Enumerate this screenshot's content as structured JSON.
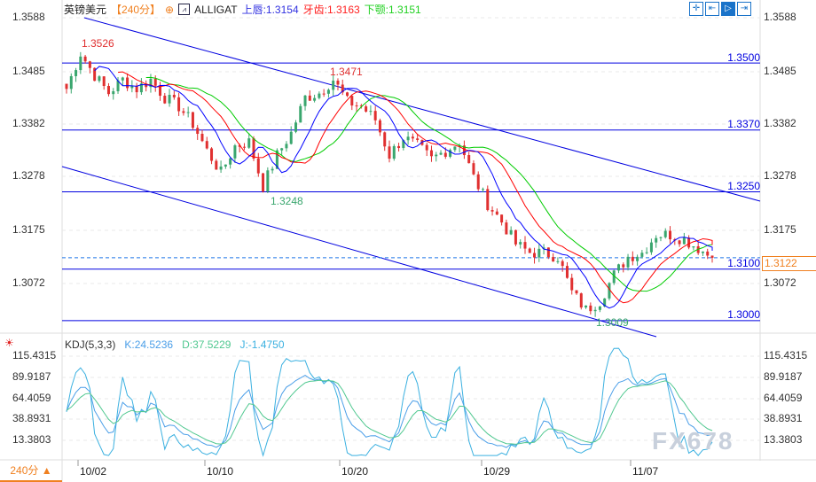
{
  "header": {
    "symbol": "英镑美元",
    "period": "【240分】",
    "indicator_icon": "chart-icon",
    "indicator": "ALLIGAT",
    "jaw": "上唇:1.3154",
    "teeth": "牙齿:1.3163",
    "lips": "下颚:1.3151"
  },
  "toolbar": {
    "icons": [
      "crosshair-icon",
      "zoom-range-icon",
      "cursor-mode-icon",
      "scroll-end-icon"
    ]
  },
  "price_axis": {
    "left": [
      "1.3588",
      "1.3485",
      "1.3382",
      "1.3278",
      "1.3175",
      "1.3072"
    ],
    "right": [
      "1.3588",
      "1.3485",
      "1.3382",
      "1.3278",
      "1.3175",
      "1.3072"
    ]
  },
  "levels": [
    "1.3500",
    "1.3370",
    "1.3250",
    "1.3100",
    "1.3000"
  ],
  "annotations": {
    "high1": "1.3526",
    "high2": "1.3471",
    "low1": "1.3248",
    "low2": "1.3009"
  },
  "current_price": "1.3122",
  "kdj": {
    "title": "KDJ(5,3,3)",
    "k": "K:24.5236",
    "d": "D:37.5229",
    "j": "J:-1.4750",
    "axis": [
      "115.4315",
      "89.9187",
      "64.4059",
      "38.8931",
      "13.3803"
    ]
  },
  "x_axis": [
    "10/02",
    "10/10",
    "10/20",
    "10/29",
    "11/07"
  ],
  "footer": {
    "period_button": "240分 ▲"
  },
  "watermark": "FX678",
  "colors": {
    "up": "#3aa66e",
    "down": "#e03030",
    "jaw": "#0000ff",
    "teeth": "#ff0000",
    "lips": "#00cc00",
    "level": "#0000e0",
    "k": "#4a9ee8",
    "d": "#50c890",
    "j": "#3ab0e0",
    "accent": "#f08020"
  },
  "chart_data": {
    "type": "candlestick",
    "ylim": [
      1.299,
      1.36
    ],
    "key_closes": [
      1.345,
      1.3519,
      1.3476,
      1.3442,
      1.3468,
      1.345,
      1.3468,
      1.3433,
      1.3416,
      1.3382,
      1.333,
      1.3287,
      1.3339,
      1.3347,
      1.3261,
      1.3321,
      1.3364,
      1.3433,
      1.3442,
      1.3468,
      1.3425,
      1.3416,
      1.339,
      1.3321,
      1.3356,
      1.3339,
      1.3313,
      1.333,
      1.3347,
      1.3278,
      1.3227,
      1.3192,
      1.3149,
      1.3132,
      1.3132,
      1.3124,
      1.3055,
      1.3021,
      1.3038,
      1.3089,
      1.3124,
      1.3132,
      1.3167,
      1.3167,
      1.3158,
      1.3141,
      1.3122
    ]
  }
}
